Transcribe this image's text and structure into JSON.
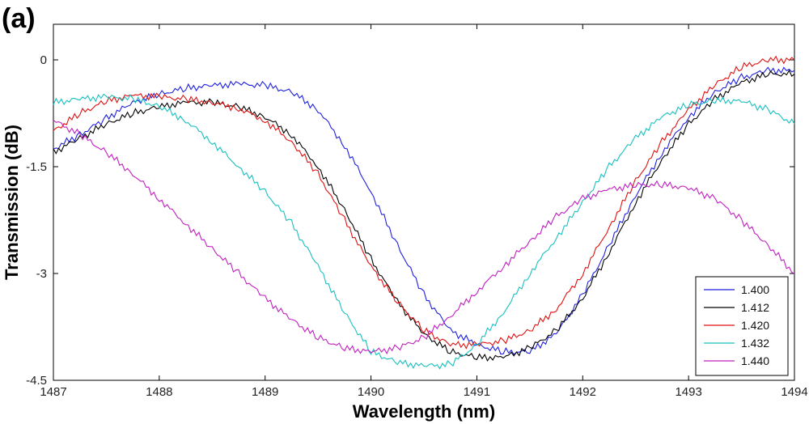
{
  "panel_label": "(a)",
  "chart_data": {
    "type": "line",
    "xlabel": "Wavelength (nm)",
    "ylabel": "Transmission (dB)",
    "xlim": [
      1487,
      1494
    ],
    "ylim": [
      -4.5,
      0.5
    ],
    "xticks": [
      1487,
      1488,
      1489,
      1490,
      1491,
      1492,
      1493,
      1494
    ],
    "xtick_labels": [
      "1487",
      "1488",
      "1489",
      "1490",
      "1491",
      "1492",
      "1493",
      "1494"
    ],
    "yticks": [
      0,
      -1.5,
      -3,
      -4.5
    ],
    "ytick_labels": [
      "0",
      "-1.5",
      "-3",
      "-4.5"
    ],
    "grid": false,
    "legend_position": "bottom-right",
    "x": [
      1487.0,
      1487.25,
      1487.5,
      1487.75,
      1488.0,
      1488.25,
      1488.5,
      1488.75,
      1489.0,
      1489.25,
      1489.5,
      1489.75,
      1490.0,
      1490.25,
      1490.5,
      1490.75,
      1491.0,
      1491.25,
      1491.5,
      1491.75,
      1492.0,
      1492.25,
      1492.5,
      1492.75,
      1493.0,
      1493.25,
      1493.5,
      1493.75,
      1494.0
    ],
    "series": [
      {
        "name": "1.400",
        "color": "#1f1fe0",
        "values": [
          -1.25,
          -1.05,
          -0.82,
          -0.6,
          -0.48,
          -0.4,
          -0.36,
          -0.34,
          -0.36,
          -0.45,
          -0.7,
          -1.2,
          -1.85,
          -2.6,
          -3.3,
          -3.8,
          -4.0,
          -4.1,
          -4.1,
          -3.85,
          -3.3,
          -2.6,
          -1.9,
          -1.3,
          -0.8,
          -0.45,
          -0.25,
          -0.15,
          -0.15
        ]
      },
      {
        "name": "1.412",
        "color": "#000000",
        "values": [
          -1.3,
          -1.1,
          -0.9,
          -0.75,
          -0.66,
          -0.6,
          -0.6,
          -0.66,
          -0.8,
          -1.05,
          -1.5,
          -2.1,
          -2.8,
          -3.4,
          -3.85,
          -4.1,
          -4.18,
          -4.18,
          -4.05,
          -3.8,
          -3.35,
          -2.7,
          -2.0,
          -1.4,
          -0.9,
          -0.55,
          -0.32,
          -0.2,
          -0.2
        ]
      },
      {
        "name": "1.420",
        "color": "#e01010",
        "values": [
          -1.0,
          -0.75,
          -0.58,
          -0.5,
          -0.52,
          -0.55,
          -0.6,
          -0.68,
          -0.85,
          -1.15,
          -1.6,
          -2.25,
          -2.9,
          -3.4,
          -3.8,
          -4.0,
          -4.0,
          -3.95,
          -3.8,
          -3.5,
          -3.0,
          -2.35,
          -1.7,
          -1.15,
          -0.7,
          -0.35,
          -0.1,
          0.0,
          0.0
        ]
      },
      {
        "name": "1.432",
        "color": "#18c0c0",
        "values": [
          -0.6,
          -0.55,
          -0.52,
          -0.55,
          -0.65,
          -0.85,
          -1.15,
          -1.5,
          -1.85,
          -2.3,
          -2.9,
          -3.55,
          -4.1,
          -4.25,
          -4.3,
          -4.28,
          -4.0,
          -3.55,
          -3.0,
          -2.5,
          -2.0,
          -1.5,
          -1.1,
          -0.8,
          -0.63,
          -0.57,
          -0.58,
          -0.7,
          -0.9
        ]
      },
      {
        "name": "1.440",
        "color": "#c020c0",
        "values": [
          -0.85,
          -1.05,
          -1.3,
          -1.6,
          -1.95,
          -2.3,
          -2.65,
          -3.0,
          -3.35,
          -3.65,
          -3.9,
          -4.05,
          -4.1,
          -4.05,
          -3.9,
          -3.6,
          -3.25,
          -2.9,
          -2.55,
          -2.2,
          -1.95,
          -1.82,
          -1.76,
          -1.75,
          -1.8,
          -1.95,
          -2.25,
          -2.6,
          -3.0
        ]
      }
    ]
  }
}
